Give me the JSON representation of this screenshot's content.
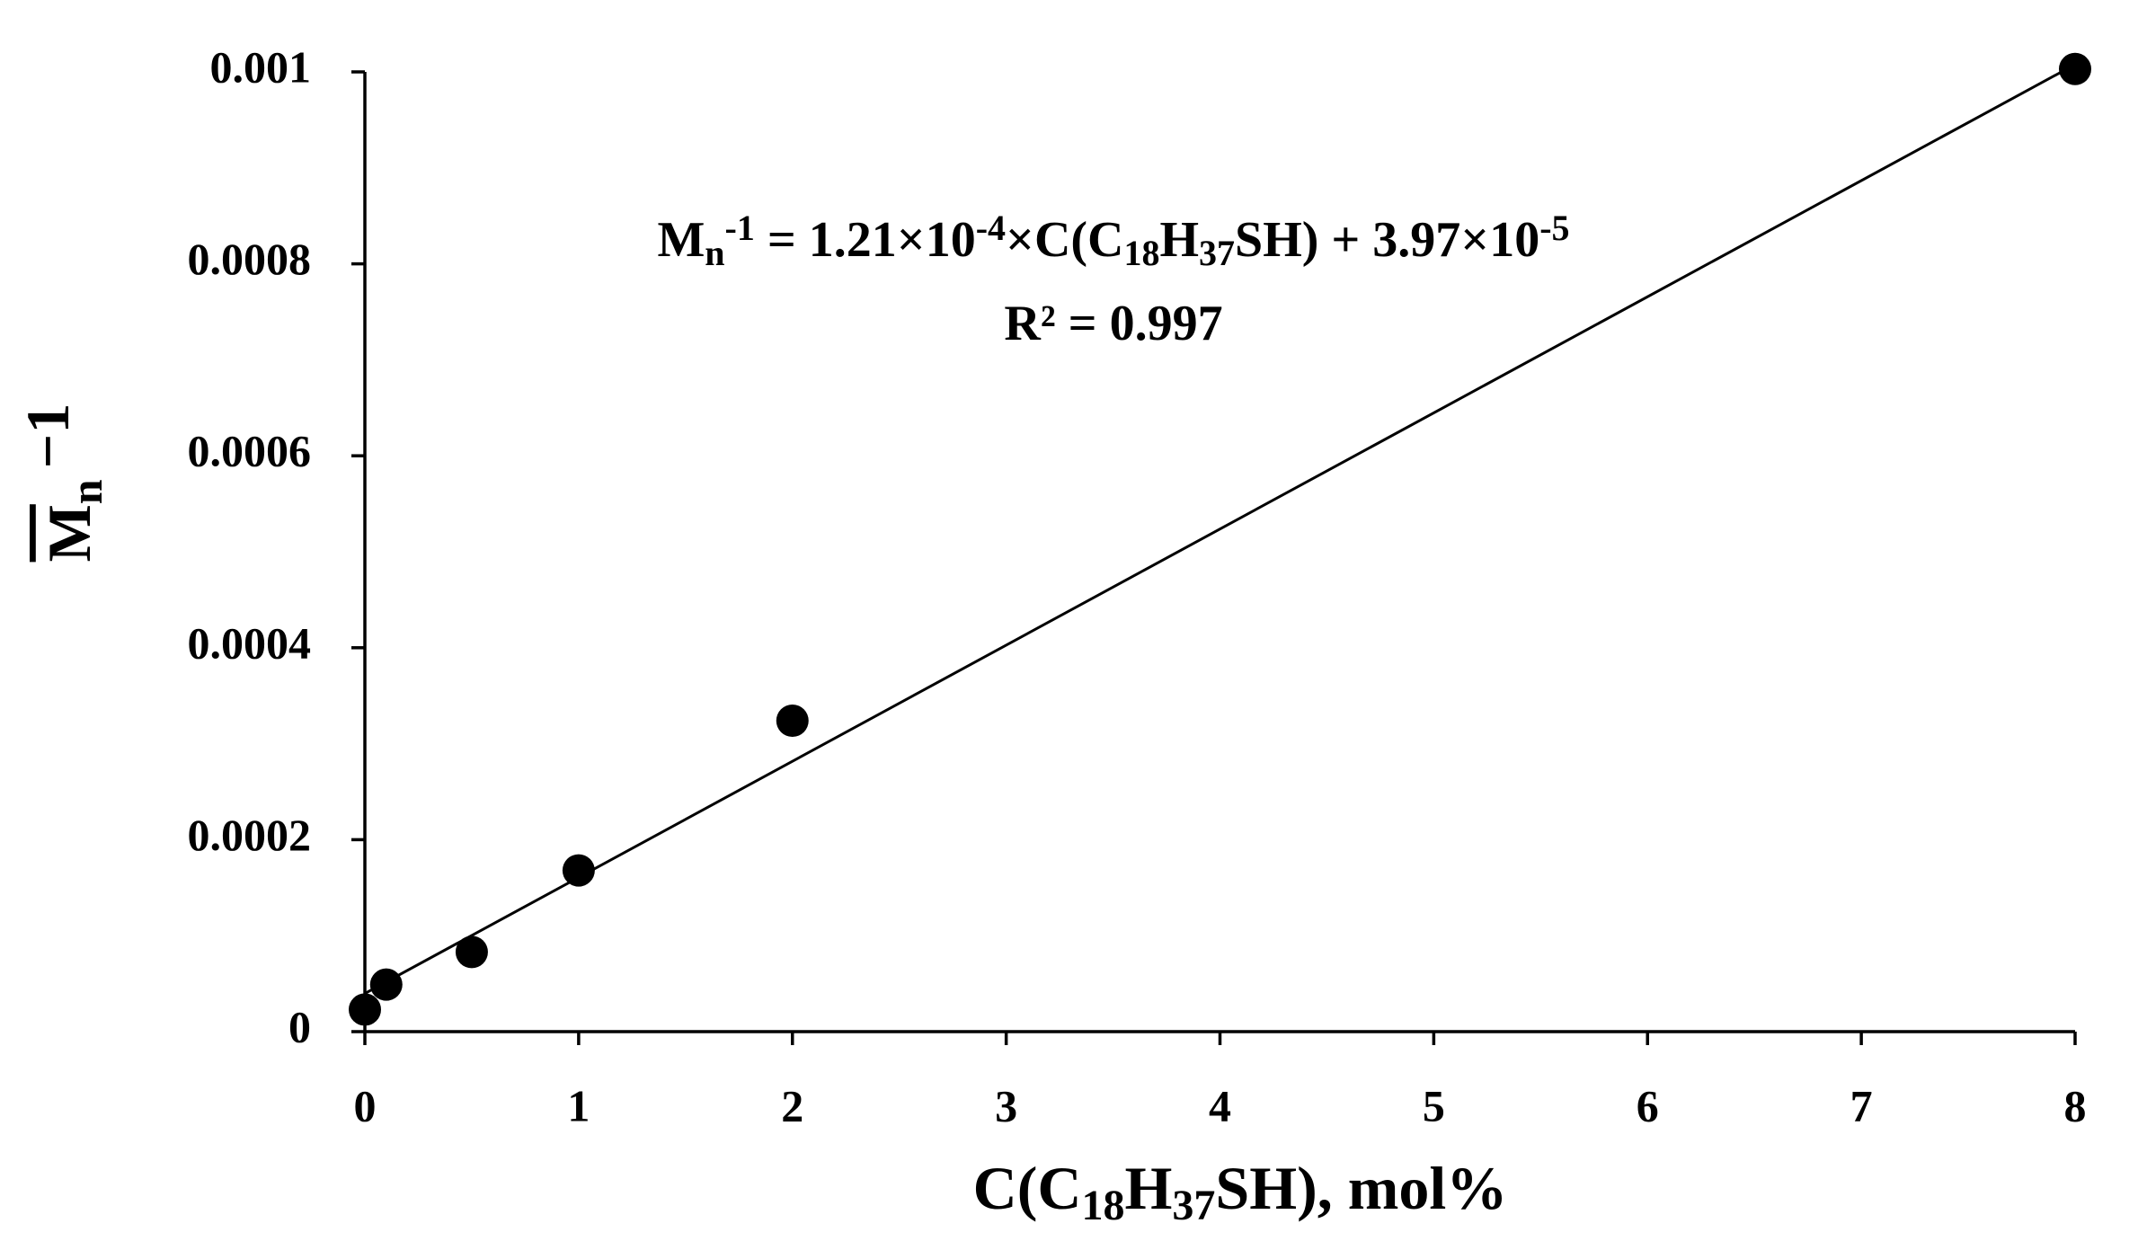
{
  "chart_data": {
    "type": "scatter",
    "x": [
      0,
      0.1,
      0.5,
      1,
      2,
      8
    ],
    "values": [
      2.3e-05,
      4.9e-05,
      8.3e-05,
      0.000168,
      0.000324,
      0.001003
    ],
    "color": "#000000",
    "xlim": [
      0,
      8
    ],
    "ylim": [
      0,
      0.001
    ],
    "xticks": [
      0,
      1,
      2,
      3,
      4,
      5,
      6,
      7,
      8
    ],
    "yticks": [
      0,
      0.0002,
      0.0004,
      0.0006,
      0.0008,
      0.001
    ],
    "x_label": [
      "C(C",
      "18",
      "H",
      "37",
      "SH), mol%"
    ],
    "y_label": [
      "M",
      "n",
      "−1"
    ],
    "equation": [
      "M",
      "n",
      "-1",
      " = 1.21×10",
      "-4",
      "×C(C",
      "18",
      "H",
      "37",
      "SH) + 3.97×10",
      "-5"
    ],
    "r2_label": "R² = 0.997",
    "trendline": {
      "slope": 0.000121,
      "intercept": 3.97e-05
    }
  }
}
